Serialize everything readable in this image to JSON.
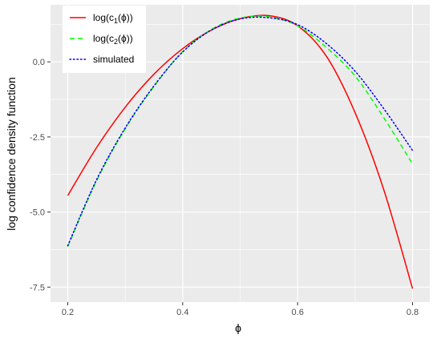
{
  "chart_data": {
    "type": "line",
    "xlabel": "ϕ",
    "ylabel": "log confidence density function",
    "xlim": [
      0.17,
      0.83
    ],
    "ylim": [
      -8.0,
      1.9
    ],
    "x_ticks": [
      0.2,
      0.4,
      0.6,
      0.8
    ],
    "x_tick_labels": [
      "0.2",
      "0.4",
      "0.6",
      "0.8"
    ],
    "y_ticks": [
      0.0,
      -2.5,
      -5.0,
      -7.5
    ],
    "y_tick_labels": [
      "0.0",
      "-2.5",
      "-5.0",
      "-7.5"
    ],
    "grid": true,
    "legend_position": "top-left",
    "x": [
      0.2,
      0.25,
      0.3,
      0.35,
      0.4,
      0.45,
      0.5,
      0.55,
      0.6,
      0.65,
      0.7,
      0.75,
      0.8
    ],
    "series": [
      {
        "key": "c1",
        "legend": {
          "base": "log(c",
          "sub": "1",
          "tail": "(ϕ))"
        },
        "color": "#ff0000",
        "dash": "solid",
        "values": [
          -4.45,
          -2.86,
          -1.51,
          -0.41,
          0.44,
          1.06,
          1.44,
          1.54,
          1.2,
          0.19,
          -1.69,
          -4.26,
          -7.55
        ]
      },
      {
        "key": "c2",
        "legend": {
          "base": "log(c",
          "sub": "2",
          "tail": "(ϕ))"
        },
        "color": "#00ff00",
        "dash": "dashed",
        "values": [
          -6.15,
          -3.97,
          -2.23,
          -0.82,
          0.34,
          1.08,
          1.46,
          1.5,
          1.2,
          0.48,
          -0.47,
          -1.86,
          -3.4
        ]
      },
      {
        "key": "sim",
        "legend": {
          "base": "simulated",
          "sub": "",
          "tail": ""
        },
        "color": "#0000ff",
        "dash": "dotted",
        "values": [
          -6.12,
          -3.93,
          -2.2,
          -0.8,
          0.33,
          1.06,
          1.43,
          1.47,
          1.24,
          0.61,
          -0.31,
          -1.56,
          -2.95
        ]
      }
    ]
  }
}
